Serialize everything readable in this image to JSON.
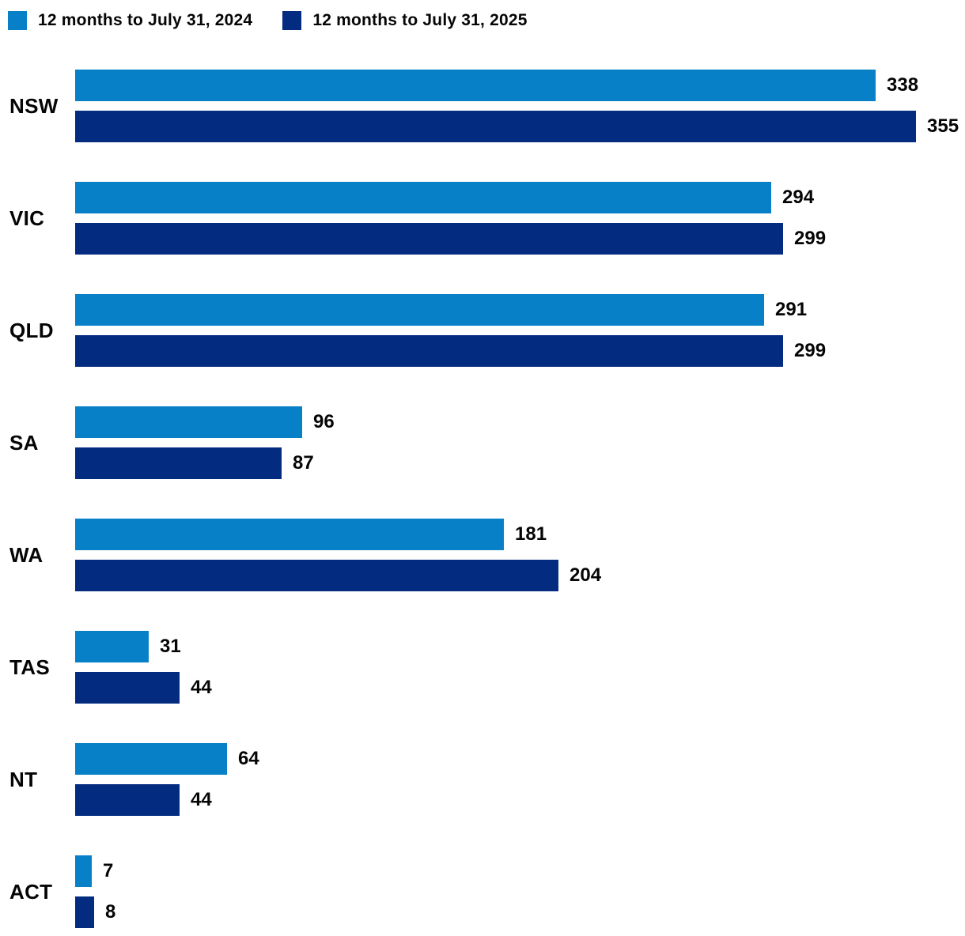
{
  "legend": {
    "items": [
      {
        "label": "12 months to July 31, 2024",
        "color": "#0880C7"
      },
      {
        "label": "12 months to July 31, 2025",
        "color": "#032B80"
      }
    ]
  },
  "chart_data": {
    "type": "bar",
    "orientation": "horizontal",
    "title": "",
    "xlabel": "",
    "ylabel": "",
    "categories": [
      "NSW",
      "VIC",
      "QLD",
      "SA",
      "WA",
      "TAS",
      "NT",
      "ACT"
    ],
    "series": [
      {
        "name": "12 months to July 31, 2024",
        "color": "#0880C7",
        "values": [
          338,
          294,
          291,
          96,
          181,
          31,
          64,
          7
        ]
      },
      {
        "name": "12 months to July 31, 2025",
        "color": "#032B80",
        "values": [
          355,
          299,
          299,
          87,
          204,
          44,
          44,
          8
        ]
      }
    ],
    "value_labels": true,
    "axis_max": 355,
    "grid": false,
    "legend_position": "top"
  }
}
